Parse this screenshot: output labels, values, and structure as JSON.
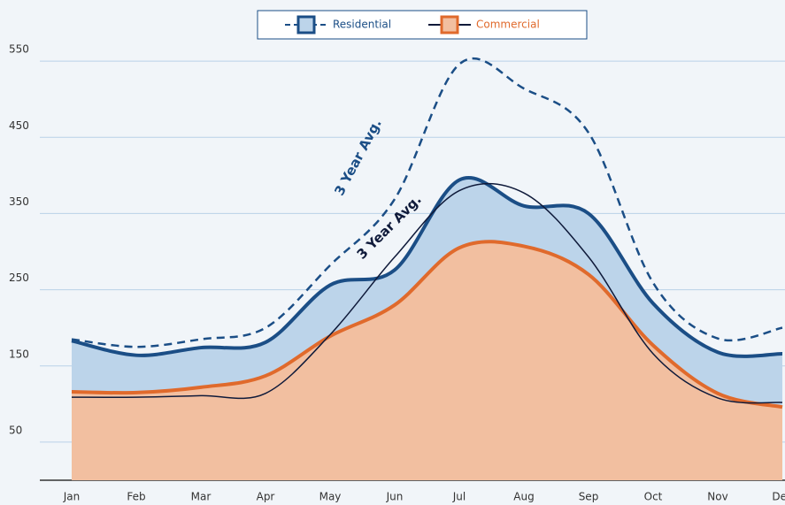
{
  "chart_data": {
    "type": "area",
    "categories": [
      "Jan",
      "Feb",
      "Mar",
      "Apr",
      "May",
      "Jun",
      "Jul",
      "Aug",
      "Sep",
      "Oct",
      "Nov",
      "Dec"
    ],
    "ylim": [
      0,
      600
    ],
    "yticks": [
      50,
      150,
      250,
      350,
      450,
      550
    ],
    "grid": true,
    "series": [
      {
        "name": "Residential",
        "color": "#1b4e86",
        "fill": "#bcd4ea",
        "values": [
          183,
          164,
          174,
          181,
          256,
          276,
          394,
          360,
          350,
          232,
          168,
          166
        ],
        "average": {
          "label": "3 Year Avg.",
          "dash": true,
          "color": "#1b4e86",
          "values": [
            185,
            175,
            185,
            200,
            282,
            369,
            546,
            514,
            456,
            259,
            186,
            200
          ]
        }
      },
      {
        "name": "Commercial",
        "color": "#e06a2c",
        "fill": "#f2bfa0",
        "values": [
          116,
          115,
          122,
          137,
          189,
          230,
          305,
          307,
          270,
          177,
          114,
          96
        ],
        "average": {
          "label": "3 Year Avg.",
          "dash": false,
          "color": "#0f1a3a",
          "values": [
            109,
            109,
            111,
            114,
            191,
            293,
            380,
            377,
            293,
            166,
            108,
            102
          ]
        }
      }
    ]
  }
}
